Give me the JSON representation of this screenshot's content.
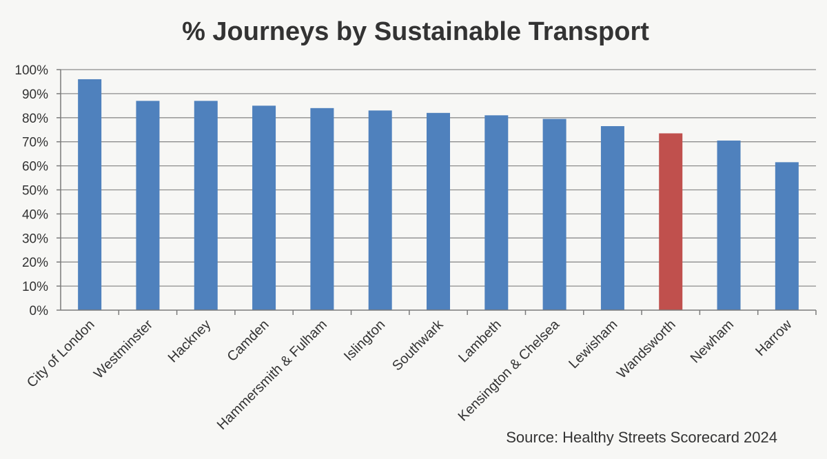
{
  "chart_data": {
    "type": "bar",
    "title": "% Journeys by Sustainable Transport",
    "xlabel": "",
    "ylabel": "",
    "ylim": [
      0,
      100
    ],
    "yticks": [
      "0%",
      "10%",
      "20%",
      "30%",
      "40%",
      "50%",
      "60%",
      "70%",
      "80%",
      "90%",
      "100%"
    ],
    "grid": true,
    "categories": [
      "City of London",
      "Westminster",
      "Hackney",
      "Camden",
      "Hammersmith & Fulham",
      "Islington",
      "Southwark",
      "Lambeth",
      "Kensington & Chelsea",
      "Lewisham",
      "Wandsworth",
      "Newham",
      "Harrow"
    ],
    "values": [
      96,
      87,
      87,
      85,
      84,
      83,
      82,
      81,
      79.5,
      76.5,
      73.5,
      70.5,
      61.5
    ],
    "highlight": "Wandsworth",
    "colors": {
      "bar": "#4f81bd",
      "highlight": "#c0504d"
    },
    "source": "Source:  Healthy Streets Scorecard 2024"
  }
}
